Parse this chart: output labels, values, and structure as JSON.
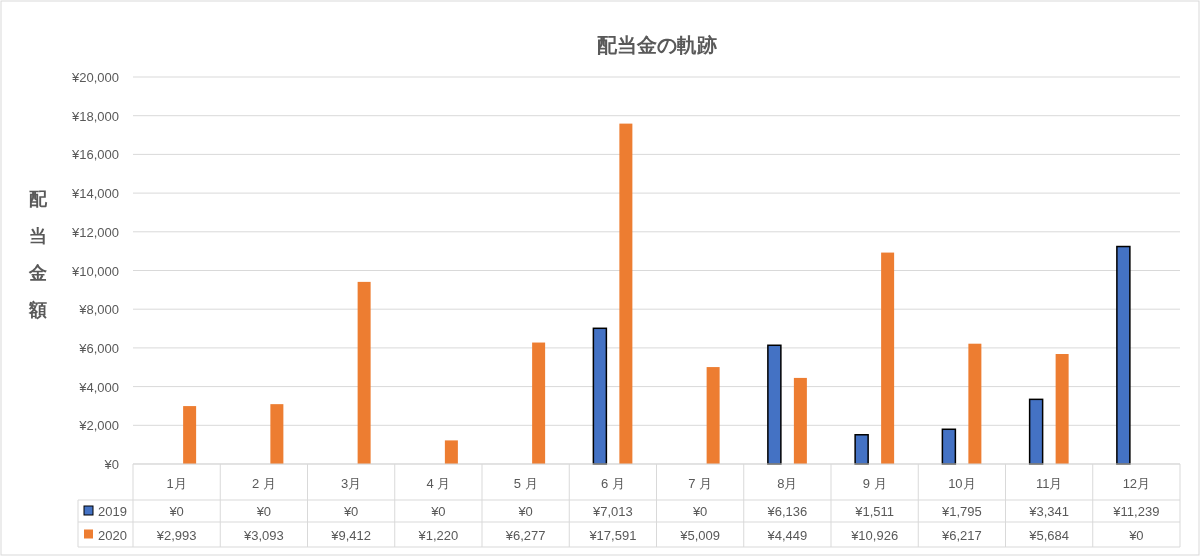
{
  "chart_data": {
    "type": "bar",
    "title": "配当金の軌跡",
    "ylabel": "配当金額",
    "categories": [
      "1月",
      "2 月",
      "3月",
      "4 月",
      "5 月",
      "6 月",
      "7 月",
      "8月",
      "9 月",
      "10月",
      "11月",
      "12月"
    ],
    "series": [
      {
        "name": "2019",
        "color": "#4472c4",
        "values": [
          0,
          0,
          0,
          0,
          0,
          7013,
          0,
          6136,
          1511,
          1795,
          3341,
          11239
        ],
        "value_labels": [
          "¥0",
          "¥0",
          "¥0",
          "¥0",
          "¥0",
          "¥7,013",
          "¥0",
          "¥6,136",
          "¥1,511",
          "¥1,795",
          "¥3,341",
          "¥11,239"
        ]
      },
      {
        "name": "2020",
        "color": "#ed7d31",
        "values": [
          2993,
          3093,
          9412,
          1220,
          6277,
          17591,
          5009,
          4449,
          10926,
          6217,
          5684,
          0
        ],
        "value_labels": [
          "¥2,993",
          "¥3,093",
          "¥9,412",
          "¥1,220",
          "¥6,277",
          "¥17,591",
          "¥5,009",
          "¥4,449",
          "¥10,926",
          "¥6,217",
          "¥5,684",
          "¥0"
        ]
      }
    ],
    "ylim": [
      0,
      20000
    ],
    "yticks": [
      {
        "value": 0,
        "label": "¥0"
      },
      {
        "value": 2000,
        "label": "¥2,000"
      },
      {
        "value": 4000,
        "label": "¥4,000"
      },
      {
        "value": 6000,
        "label": "¥6,000"
      },
      {
        "value": 8000,
        "label": "¥8,000"
      },
      {
        "value": 10000,
        "label": "¥10,000"
      },
      {
        "value": 12000,
        "label": "¥12,000"
      },
      {
        "value": 14000,
        "label": "¥14,000"
      },
      {
        "value": 16000,
        "label": "¥16,000"
      },
      {
        "value": 18000,
        "label": "¥18,000"
      },
      {
        "value": 20000,
        "label": "¥20,000"
      }
    ],
    "grid": "y",
    "legend": "bottom"
  }
}
